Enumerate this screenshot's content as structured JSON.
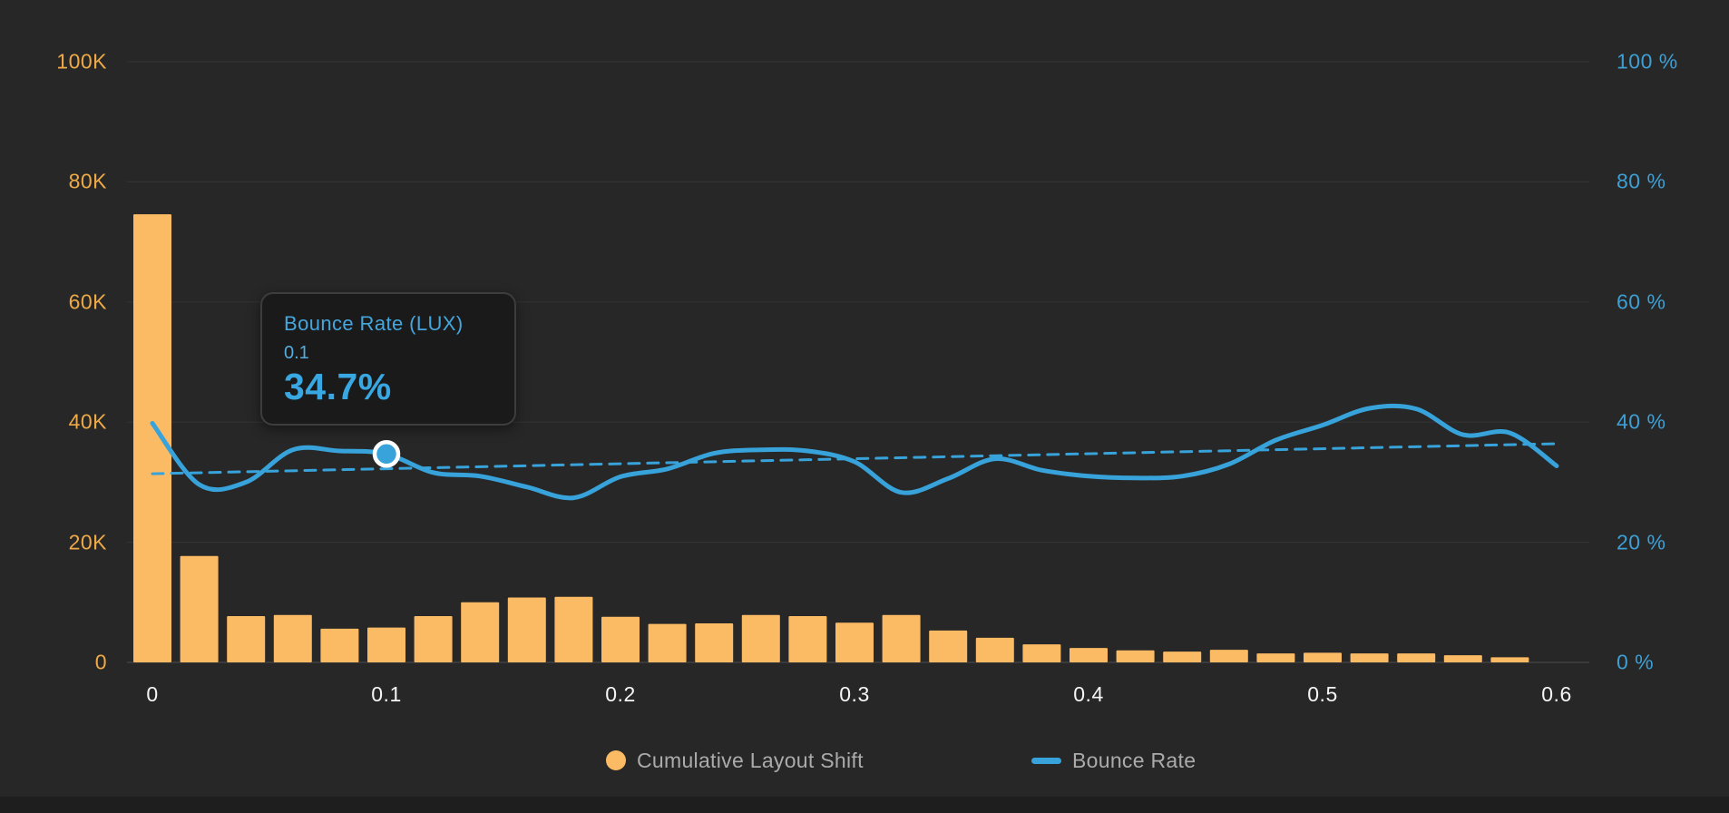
{
  "colors": {
    "background": "#272727",
    "gridline": "#333333",
    "baseline": "#3A3A3A",
    "bar_orange": "#FBBA64",
    "line_blue": "#38A3DA",
    "left_axis_text": "#EFAA47",
    "right_axis_text": "#3E9FD4",
    "x_axis_text": "#F5F5F5",
    "legend_text": "#ABABAB",
    "tooltip_background": "#1A1A1A"
  },
  "axes": {
    "left": {
      "ticks": [
        "100K",
        "80K",
        "60K",
        "40K",
        "20K",
        "0"
      ],
      "max": 100000
    },
    "right": {
      "ticks": [
        "100 %",
        "80 %",
        "60 %",
        "40 %",
        "20 %",
        "0 %"
      ],
      "max": 100
    },
    "x": {
      "ticks": [
        "0",
        "0.1",
        "0.2",
        "0.3",
        "0.4",
        "0.5",
        "0.6"
      ],
      "min": 0,
      "max": 0.6
    }
  },
  "tooltip": {
    "title": "Bounce Rate (LUX)",
    "label": "0.1",
    "value": "34.7%"
  },
  "legend": {
    "items": [
      {
        "label": "Cumulative Layout Shift",
        "swatch": "circle",
        "color": "#FBBA64"
      },
      {
        "label": "Bounce Rate",
        "swatch": "dash",
        "color": "#38A3DA"
      }
    ]
  },
  "chart_data": [
    {
      "type": "bar",
      "name": "Cumulative Layout Shift",
      "axis": "left",
      "ylim": [
        0,
        100000
      ],
      "color": "#FBBA64",
      "x": [
        0.0,
        0.02,
        0.04,
        0.06,
        0.08,
        0.1,
        0.12,
        0.14,
        0.16,
        0.18,
        0.2,
        0.22,
        0.24,
        0.26,
        0.28,
        0.3,
        0.32,
        0.34,
        0.36,
        0.38,
        0.4,
        0.42,
        0.44,
        0.46,
        0.48,
        0.5,
        0.52,
        0.54,
        0.56,
        0.58
      ],
      "values": [
        74600,
        17700,
        7700,
        7900,
        5600,
        5800,
        7700,
        10000,
        10800,
        10900,
        7600,
        6400,
        6500,
        7900,
        7700,
        6600,
        7900,
        5300,
        4100,
        3000,
        2400,
        2000,
        1800,
        2100,
        1500,
        1600,
        1500,
        1500,
        1200,
        850
      ]
    },
    {
      "type": "line",
      "name": "Bounce Rate",
      "axis": "right",
      "ylim": [
        0,
        100
      ],
      "color": "#38A3DA",
      "smooth": true,
      "x": [
        0.0,
        0.02,
        0.04,
        0.06,
        0.08,
        0.1,
        0.12,
        0.14,
        0.16,
        0.18,
        0.2,
        0.22,
        0.24,
        0.26,
        0.28,
        0.3,
        0.32,
        0.34,
        0.36,
        0.38,
        0.4,
        0.42,
        0.44,
        0.46,
        0.48,
        0.5,
        0.52,
        0.54,
        0.56,
        0.58,
        0.6
      ],
      "values": [
        39.8,
        29.6,
        30.0,
        35.4,
        35.2,
        34.7,
        31.6,
        31.0,
        29.2,
        27.4,
        30.9,
        32.2,
        34.8,
        35.4,
        35.2,
        33.4,
        28.3,
        30.6,
        33.9,
        32.0,
        31.0,
        30.7,
        31.0,
        33.0,
        37.0,
        39.5,
        42.3,
        42.2,
        37.9,
        38.2,
        32.7
      ],
      "highlight": {
        "x": 0.1,
        "value": 34.7
      },
      "trendline": {
        "style": "dashed",
        "start_value": 31.4,
        "end_value": 36.4
      }
    }
  ]
}
